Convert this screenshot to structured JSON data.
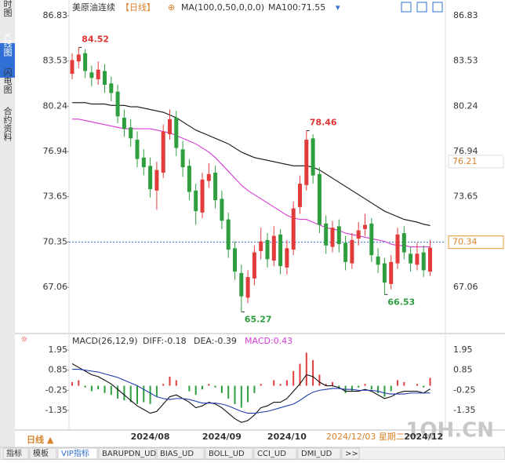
{
  "ui": {
    "sidebar_tabs": [
      "分时图",
      "K线图",
      "闪电图",
      "合约资料"
    ],
    "bottom_tabs": [
      "指标",
      "模板",
      "VIP指标",
      "BARUPDN_UD",
      "BIAS_UD",
      "BOLL_UD",
      "CCI_UD",
      "DMI_UD",
      ">>"
    ],
    "period_button": "日线 ▲",
    "cursor_label": "2024/12/03 星期二",
    "watermark": "1QH.CN"
  },
  "chart_data": {
    "type": "candlestick",
    "title": "美原油连续",
    "period": "【日线】",
    "indicator": "MA(100,0,50,0,0,0)",
    "ma_readout": "MA100:71.55",
    "categories": [
      null,
      null,
      null,
      null,
      null,
      null,
      null,
      null,
      null,
      null,
      null,
      null,
      "2024/08",
      null,
      null,
      null,
      null,
      null,
      null,
      null,
      null,
      null,
      null,
      "2024/09",
      null,
      null,
      null,
      null,
      null,
      null,
      null,
      null,
      null,
      "2024/10",
      null,
      null,
      null,
      null,
      null,
      null,
      null,
      null,
      null,
      null,
      null,
      null,
      null,
      null,
      null,
      null,
      null,
      null,
      null,
      null,
      "2024/12",
      null
    ],
    "open": [
      82.6,
      83.5,
      84.1,
      82.7,
      82.2,
      82.8,
      81.9,
      81.3,
      79.4,
      78.7,
      77.8,
      76.5,
      75.9,
      74.1,
      75.4,
      78.2,
      79.4,
      77.1,
      75.9,
      74.1,
      72.5,
      74.8,
      75.4,
      73.5,
      72.0,
      69.9,
      68.1,
      66.3,
      67.7,
      69.7,
      70.5,
      69.0,
      70.9,
      68.5,
      69.8,
      72.9,
      74.5,
      77.9,
      75.3,
      71.7,
      70.0,
      71.5,
      70.3,
      68.8,
      70.6,
      71.3,
      71.7,
      69.3,
      68.8,
      67.3,
      68.8,
      71.0,
      69.5,
      68.7,
      69.6,
      68.2
    ],
    "high": [
      84.1,
      84.52,
      84.4,
      83.2,
      83.5,
      83.3,
      82.4,
      81.8,
      80.0,
      79.3,
      78.4,
      77.1,
      76.5,
      76.2,
      78.9,
      80.0,
      79.9,
      77.7,
      76.4,
      74.6,
      75.4,
      76.1,
      75.9,
      74.1,
      72.5,
      70.4,
      68.7,
      68.3,
      70.1,
      71.4,
      71.0,
      71.5,
      71.3,
      70.5,
      73.3,
      75.2,
      78.46,
      78.2,
      75.8,
      72.3,
      71.9,
      72.0,
      70.8,
      71.0,
      71.8,
      72.4,
      72.1,
      69.9,
      69.2,
      69.4,
      71.4,
      71.5,
      70.0,
      70.3,
      70.1,
      70.5
    ],
    "low": [
      82.2,
      83.0,
      82.3,
      81.7,
      81.8,
      81.2,
      80.6,
      79.0,
      78.0,
      77.3,
      75.8,
      75.2,
      73.6,
      72.7,
      75.0,
      77.8,
      76.6,
      75.1,
      73.4,
      71.6,
      72.1,
      74.3,
      72.8,
      71.3,
      69.2,
      67.6,
      65.27,
      65.9,
      67.2,
      69.1,
      68.5,
      68.6,
      68.0,
      68.0,
      69.4,
      72.4,
      74.1,
      74.6,
      71.0,
      69.5,
      69.6,
      69.6,
      68.3,
      68.4,
      70.1,
      70.8,
      68.9,
      68.1,
      66.53,
      66.9,
      68.4,
      69.1,
      68.2,
      68.3,
      67.8,
      67.9
    ],
    "close": [
      83.6,
      84.0,
      82.8,
      82.3,
      82.9,
      81.8,
      81.2,
      79.5,
      78.6,
      77.9,
      76.4,
      75.8,
      74.2,
      75.6,
      78.4,
      79.3,
      77.2,
      75.8,
      74.0,
      72.6,
      74.9,
      75.3,
      73.4,
      71.9,
      69.8,
      68.2,
      66.4,
      67.8,
      69.6,
      70.4,
      69.1,
      70.8,
      68.6,
      69.9,
      72.8,
      74.6,
      77.8,
      75.2,
      71.6,
      70.1,
      71.4,
      70.2,
      68.9,
      70.5,
      71.2,
      71.6,
      69.4,
      68.7,
      67.4,
      68.9,
      70.9,
      69.6,
      68.8,
      69.5,
      68.3,
      69.94
    ],
    "up_color": "#e23b3b",
    "down_color": "#2e9e3e",
    "ma_lines": [
      {
        "color": "#111111",
        "values": [
          80.5,
          80.5,
          80.5,
          80.4,
          80.4,
          80.4,
          80.3,
          80.3,
          80.3,
          80.2,
          80.2,
          80.1,
          80.0,
          79.9,
          79.8,
          79.6,
          79.4,
          79.1,
          78.8,
          78.5,
          78.3,
          78.1,
          77.9,
          77.7,
          77.5,
          77.2,
          76.9,
          76.7,
          76.5,
          76.4,
          76.3,
          76.2,
          76.1,
          76.0,
          75.9,
          75.9,
          75.9,
          75.8,
          75.6,
          75.3,
          75.0,
          74.7,
          74.4,
          74.1,
          73.8,
          73.5,
          73.2,
          72.9,
          72.6,
          72.4,
          72.2,
          72.0,
          71.9,
          71.8,
          71.65,
          71.55
        ]
      },
      {
        "color": "#d63bd6",
        "values": [
          79.3,
          79.3,
          79.2,
          79.1,
          79.0,
          78.9,
          78.8,
          78.7,
          78.6,
          78.6,
          78.6,
          78.6,
          78.6,
          78.5,
          78.4,
          78.3,
          78.1,
          77.9,
          77.7,
          77.5,
          77.2,
          76.9,
          76.5,
          76.0,
          75.5,
          75.0,
          74.5,
          74.1,
          73.8,
          73.5,
          73.2,
          72.9,
          72.6,
          72.3,
          72.1,
          72.0,
          72.0,
          71.8,
          71.6,
          71.4,
          71.3,
          71.2,
          71.0,
          70.9,
          70.8,
          70.7,
          70.6,
          70.5,
          70.4,
          70.2,
          70.1,
          70.1,
          70.0,
          70.0,
          70.0,
          70.0
        ]
      }
    ],
    "ylim": [
      64.55,
      87.4
    ],
    "yticks": [
      86.83,
      83.53,
      80.24,
      76.94,
      73.65,
      70.35,
      67.06
    ],
    "annotated": [
      {
        "field": "high",
        "index": 1
      },
      {
        "field": "high",
        "index": 36
      },
      {
        "field": "low",
        "index": 26
      },
      {
        "field": "low",
        "index": 48
      }
    ],
    "last_price": 70.34,
    "level_marker": 76.21,
    "macd": {
      "title": "MACD(26,12,9)",
      "diff_readout": "DIFF:-0.18",
      "dea_readout": "DEA:-0.39",
      "macd_readout": "MACD:0.43",
      "ylim": [
        -2.29,
        2.55
      ],
      "yticks": [
        1.95,
        0.85,
        -0.25,
        -1.35
      ],
      "hist": [
        0.2,
        0.3,
        -0.1,
        -0.3,
        -0.2,
        -0.4,
        -0.5,
        -0.7,
        -0.8,
        -0.9,
        -1.0,
        -0.9,
        -1.0,
        -0.6,
        0.1,
        0.5,
        0.3,
        0.0,
        -0.3,
        -0.5,
        -0.2,
        0.1,
        -0.1,
        -0.4,
        -0.7,
        -1.0,
        -1.2,
        -0.9,
        -0.4,
        0.1,
        0.0,
        0.3,
        0.1,
        0.3,
        0.8,
        1.2,
        1.8,
        1.4,
        0.6,
        0.1,
        0.2,
        -0.1,
        -0.4,
        -0.3,
        -0.1,
        0.1,
        -0.2,
        -0.4,
        -0.6,
        -0.3,
        0.3,
        0.2,
        0.0,
        0.1,
        -0.1,
        0.43
      ],
      "diff": [
        1.2,
        1.0,
        0.8,
        0.6,
        0.5,
        0.3,
        0.1,
        -0.2,
        -0.5,
        -0.8,
        -1.1,
        -1.3,
        -1.5,
        -1.4,
        -1.0,
        -0.6,
        -0.5,
        -0.7,
        -0.9,
        -1.2,
        -1.1,
        -0.9,
        -1.0,
        -1.2,
        -1.5,
        -1.8,
        -2.0,
        -1.9,
        -1.6,
        -1.2,
        -1.1,
        -0.9,
        -0.9,
        -0.7,
        -0.3,
        0.1,
        0.6,
        0.5,
        0.2,
        0.0,
        0.0,
        -0.1,
        -0.3,
        -0.3,
        -0.3,
        -0.2,
        -0.3,
        -0.5,
        -0.7,
        -0.6,
        -0.4,
        -0.3,
        -0.3,
        -0.3,
        -0.4,
        -0.18
      ],
      "dea": [
        0.9,
        0.9,
        0.85,
        0.8,
        0.75,
        0.65,
        0.55,
        0.45,
        0.3,
        0.15,
        0.0,
        -0.2,
        -0.4,
        -0.6,
        -0.7,
        -0.75,
        -0.7,
        -0.7,
        -0.75,
        -0.85,
        -0.95,
        -0.95,
        -0.95,
        -1.0,
        -1.1,
        -1.25,
        -1.4,
        -1.5,
        -1.5,
        -1.45,
        -1.4,
        -1.3,
        -1.2,
        -1.1,
        -1.0,
        -0.8,
        -0.55,
        -0.35,
        -0.25,
        -0.2,
        -0.15,
        -0.15,
        -0.2,
        -0.2,
        -0.25,
        -0.25,
        -0.25,
        -0.3,
        -0.4,
        -0.45,
        -0.45,
        -0.45,
        -0.4,
        -0.4,
        -0.4,
        -0.39
      ],
      "diff_color": "#111111",
      "dea_color": "#1f3fae"
    }
  }
}
